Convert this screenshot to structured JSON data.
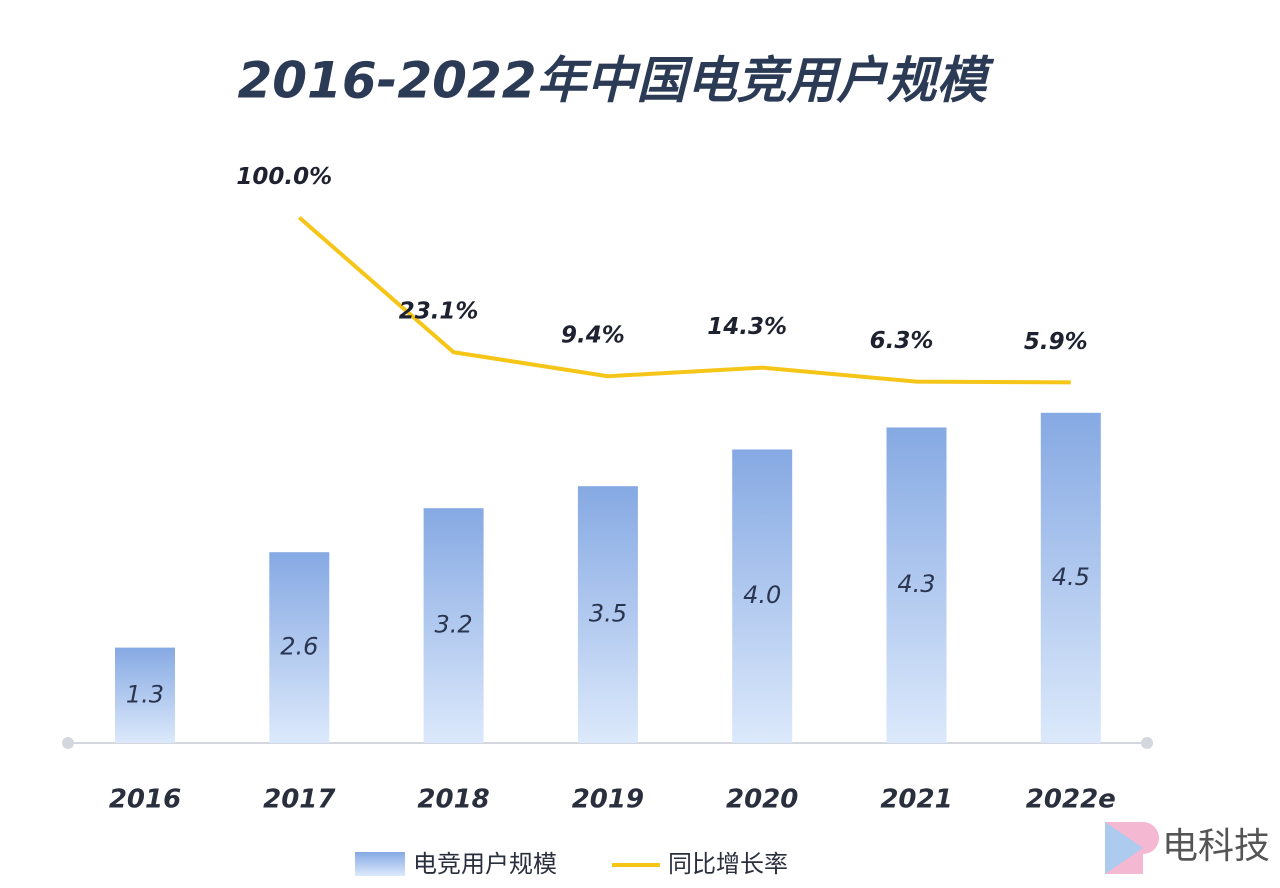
{
  "chart_data": {
    "type": "bar",
    "title": "2016-2022年中国电竞用户规模",
    "categories": [
      "2016",
      "2017",
      "2018",
      "2019",
      "2020",
      "2021",
      "2022e"
    ],
    "series": [
      {
        "name": "电竞用户规模",
        "type": "bar",
        "color": "#8aaee6",
        "values": [
          1.3,
          2.6,
          3.2,
          3.5,
          4.0,
          4.3,
          4.5
        ],
        "value_labels": [
          "1.3",
          "2.6",
          "3.2",
          "3.5",
          "4.0",
          "4.3",
          "4.5"
        ]
      },
      {
        "name": "同比增长率",
        "type": "line",
        "axis": "y2",
        "color": "#f5c518",
        "values": [
          null,
          100.0,
          23.1,
          9.4,
          14.3,
          6.3,
          5.9
        ],
        "value_labels": [
          null,
          "100.0%",
          "23.1%",
          "9.4%",
          "14.3%",
          "6.3%",
          "5.9%"
        ]
      }
    ],
    "ylim": [
      0,
      7.4
    ],
    "y2lim": [
      -200,
      110
    ],
    "watermark": "电科技"
  }
}
